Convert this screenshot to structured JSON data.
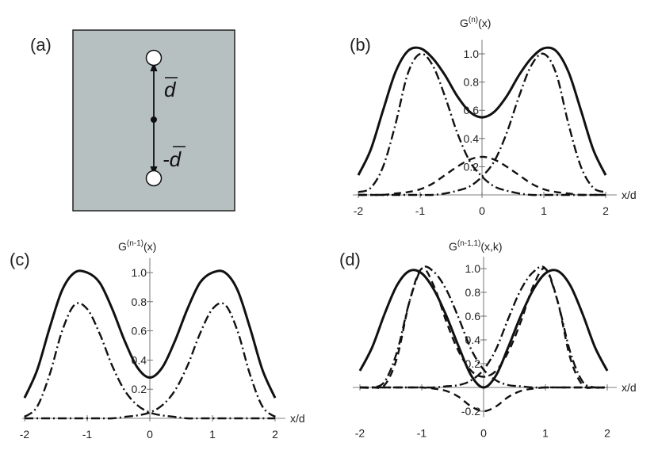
{
  "panel_a": {
    "label": "(a)",
    "background_color": "#b7c0c0",
    "label_top": "d",
    "label_bottom": "-d"
  },
  "chart_data": [
    {
      "panel": "(b)",
      "type": "line",
      "title": "G",
      "title_sup": "(n)",
      "title_suffix": "(x)",
      "xlabel": "x/d",
      "ylabel": "",
      "xlim": [
        -2.1,
        2.1
      ],
      "ylim": [
        0,
        1.1
      ],
      "xticks": [
        -2,
        -1,
        0,
        1,
        2
      ],
      "yticks": [
        0.2,
        0.4,
        0.6,
        0.8,
        1.0
      ],
      "xticklabels": [
        "-2",
        "-1",
        "0",
        "1",
        "2"
      ],
      "yticklabels": [
        "0.2",
        "0.4",
        "0.6",
        "0.8",
        "1.0"
      ],
      "grid": false,
      "series": [
        {
          "style": "solid",
          "x": [
            -2,
            -1.8,
            -1.6,
            -1.4,
            -1.2,
            -1,
            -0.8,
            -0.6,
            -0.4,
            -0.2,
            0,
            0.2,
            0.4,
            0.6,
            0.8,
            1,
            1.2,
            1.4,
            1.6,
            1.8,
            2
          ],
          "y": [
            0.14,
            0.32,
            0.6,
            0.87,
            1.02,
            1.04,
            0.97,
            0.85,
            0.7,
            0.59,
            0.55,
            0.59,
            0.7,
            0.85,
            0.97,
            1.04,
            1.02,
            0.87,
            0.6,
            0.32,
            0.14
          ]
        },
        {
          "style": "dashdot",
          "x": [
            -2,
            -1.8,
            -1.6,
            -1.4,
            -1.2,
            -1,
            -0.8,
            -0.6,
            -0.4,
            -0.2,
            0,
            0.2,
            0.4,
            0.6,
            0.8,
            1,
            1.2,
            1.4,
            1.6,
            1.8,
            2
          ],
          "y": [
            0.02,
            0.05,
            0.2,
            0.5,
            0.86,
            1.0,
            0.92,
            0.7,
            0.44,
            0.24,
            0.13,
            0.06,
            0.03,
            0.01,
            0.0,
            0.0,
            0.0,
            0.0,
            0.0,
            0.0,
            0.0
          ]
        },
        {
          "style": "dashdot",
          "x": [
            -2,
            -1.8,
            -1.6,
            -1.4,
            -1.2,
            -1,
            -0.8,
            -0.6,
            -0.4,
            -0.2,
            0,
            0.2,
            0.4,
            0.6,
            0.8,
            1,
            1.2,
            1.4,
            1.6,
            1.8,
            2
          ],
          "y": [
            0.0,
            0.0,
            0.0,
            0.0,
            0.0,
            0.0,
            0.0,
            0.01,
            0.03,
            0.06,
            0.13,
            0.24,
            0.44,
            0.7,
            0.92,
            1.0,
            0.86,
            0.5,
            0.2,
            0.05,
            0.02
          ]
        },
        {
          "style": "dashed",
          "x": [
            -2,
            -1.8,
            -1.6,
            -1.4,
            -1.2,
            -1,
            -0.8,
            -0.6,
            -0.4,
            -0.2,
            0,
            0.2,
            0.4,
            0.6,
            0.8,
            1,
            1.2,
            1.4,
            1.6,
            1.8,
            2
          ],
          "y": [
            0.0,
            0.0,
            0.0,
            0.01,
            0.02,
            0.04,
            0.08,
            0.14,
            0.2,
            0.25,
            0.27,
            0.25,
            0.2,
            0.14,
            0.08,
            0.04,
            0.02,
            0.01,
            0.0,
            0.0,
            0.0
          ]
        }
      ]
    },
    {
      "panel": "(c)",
      "type": "line",
      "title": "G",
      "title_sup": "(n-1)",
      "title_suffix": "(x)",
      "xlabel": "x/d",
      "ylabel": "",
      "xlim": [
        -2.1,
        2.1
      ],
      "ylim": [
        0,
        1.1
      ],
      "xticks": [
        -2,
        -1,
        0,
        1,
        2
      ],
      "yticks": [
        0.2,
        0.4,
        0.6,
        0.8,
        1.0
      ],
      "xticklabels": [
        "-2",
        "-1",
        "0",
        "1",
        "2"
      ],
      "yticklabels": [
        "0.2",
        "0.4",
        "0.6",
        "0.8",
        "1.0"
      ],
      "grid": false,
      "series": [
        {
          "style": "solid",
          "x": [
            -2,
            -1.8,
            -1.6,
            -1.4,
            -1.2,
            -1,
            -0.8,
            -0.6,
            -0.4,
            -0.2,
            0,
            0.2,
            0.4,
            0.6,
            0.8,
            1,
            1.2,
            1.4,
            1.6,
            1.8,
            2
          ],
          "y": [
            0.14,
            0.33,
            0.62,
            0.88,
            1.0,
            1.0,
            0.93,
            0.75,
            0.53,
            0.35,
            0.28,
            0.35,
            0.53,
            0.75,
            0.93,
            1.0,
            1.0,
            0.88,
            0.62,
            0.33,
            0.14
          ]
        },
        {
          "style": "dashdot",
          "x": [
            -2,
            -1.8,
            -1.6,
            -1.4,
            -1.2,
            -1,
            -0.8,
            -0.6,
            -0.4,
            -0.2,
            0,
            0.2,
            0.4,
            0.6,
            0.8,
            1,
            1.2,
            1.4,
            1.6,
            1.8,
            2
          ],
          "y": [
            0.0,
            0.0,
            0.0,
            0.0,
            0.0,
            0.0,
            0.0,
            0.0,
            0.01,
            0.02,
            0.04,
            0.09,
            0.19,
            0.36,
            0.58,
            0.75,
            0.78,
            0.6,
            0.3,
            0.08,
            0.01
          ]
        },
        {
          "style": "dashdot",
          "x": [
            -2,
            -1.8,
            -1.6,
            -1.4,
            -1.2,
            -1,
            -0.8,
            -0.6,
            -0.4,
            -0.2,
            0,
            0.2,
            0.4,
            0.6,
            0.8,
            1,
            1.2,
            1.4,
            1.6,
            1.8,
            2
          ],
          "y": [
            0.01,
            0.08,
            0.3,
            0.6,
            0.78,
            0.75,
            0.58,
            0.36,
            0.19,
            0.09,
            0.04,
            0.02,
            0.01,
            0.0,
            0.0,
            0.0,
            0.0,
            0.0,
            0.0,
            0.0,
            0.0
          ]
        }
      ]
    },
    {
      "panel": "(d)",
      "type": "line",
      "title": "G",
      "title_sup": "(n-1,1)",
      "title_suffix": "(x,k)",
      "xlabel": "x/d",
      "ylabel": "",
      "xlim": [
        -2.1,
        2.1
      ],
      "ylim": [
        -0.25,
        1.1
      ],
      "xticks": [
        -2,
        -1,
        0,
        1,
        2
      ],
      "yticks": [
        -0.2,
        0.2,
        0.4,
        0.6,
        0.8,
        1.0
      ],
      "xticklabels": [
        "-2",
        "-1",
        "0",
        "1",
        "2"
      ],
      "yticklabels": [
        "-0.2",
        "0.2",
        "0.4",
        "0.6",
        "0.8",
        "1.0"
      ],
      "grid": false,
      "series": [
        {
          "style": "solid",
          "x": [
            -2,
            -1.8,
            -1.6,
            -1.4,
            -1.2,
            -1,
            -0.8,
            -0.6,
            -0.4,
            -0.2,
            0,
            0.2,
            0.4,
            0.6,
            0.8,
            1,
            1.2,
            1.4,
            1.6,
            1.8,
            2
          ],
          "y": [
            0.14,
            0.34,
            0.62,
            0.86,
            0.98,
            0.96,
            0.82,
            0.6,
            0.34,
            0.1,
            0.0,
            0.1,
            0.34,
            0.6,
            0.82,
            0.96,
            0.98,
            0.86,
            0.62,
            0.34,
            0.14
          ]
        },
        {
          "style": "dashed",
          "x": [
            -2,
            -1.8,
            -1.6,
            -1.4,
            -1.2,
            -1,
            -0.8,
            -0.6,
            -0.4,
            -0.2,
            0,
            0.2,
            0.4,
            0.6,
            0.8,
            1,
            1.2,
            1.4,
            1.6,
            1.8,
            2
          ],
          "y": [
            0.0,
            0.0,
            0.02,
            0.25,
            0.72,
            1.0,
            0.85,
            0.55,
            0.3,
            0.14,
            0.09,
            0.14,
            0.3,
            0.55,
            0.85,
            1.0,
            0.72,
            0.25,
            0.02,
            0.0,
            0.0
          ]
        },
        {
          "style": "dashdot",
          "x": [
            -2,
            -1.8,
            -1.6,
            -1.4,
            -1.2,
            -1,
            -0.8,
            -0.6,
            -0.4,
            -0.2,
            0,
            0.2,
            0.4,
            0.6,
            0.8,
            1,
            1.2,
            1.4,
            1.6,
            1.8,
            2
          ],
          "y": [
            0.0,
            0.0,
            0.0,
            0.0,
            0.0,
            0.0,
            0.0,
            0.01,
            0.02,
            0.06,
            0.15,
            0.32,
            0.58,
            0.82,
            0.97,
            1.0,
            0.72,
            0.3,
            0.05,
            0.0,
            0.0
          ]
        },
        {
          "style": "dashdot",
          "x": [
            -2,
            -1.8,
            -1.6,
            -1.4,
            -1.2,
            -1,
            -0.8,
            -0.6,
            -0.4,
            -0.2,
            0,
            0.2,
            0.4,
            0.6,
            0.8,
            1,
            1.2,
            1.4,
            1.6,
            1.8,
            2
          ],
          "y": [
            0.0,
            0.0,
            0.05,
            0.3,
            0.72,
            1.0,
            0.97,
            0.82,
            0.58,
            0.32,
            0.15,
            0.06,
            0.02,
            0.01,
            0.0,
            0.0,
            0.0,
            0.0,
            0.0,
            0.0,
            0.0
          ]
        },
        {
          "style": "dashed",
          "x": [
            -2,
            -1.8,
            -1.6,
            -1.4,
            -1.2,
            -1,
            -0.8,
            -0.6,
            -0.4,
            -0.2,
            0,
            0.2,
            0.4,
            0.6,
            0.8,
            1,
            1.2,
            1.4,
            1.6,
            1.8,
            2
          ],
          "y": [
            0.0,
            0.0,
            0.0,
            0.0,
            0.0,
            0.0,
            -0.01,
            -0.03,
            -0.08,
            -0.16,
            -0.2,
            -0.16,
            -0.08,
            -0.03,
            -0.01,
            0.0,
            0.0,
            0.0,
            0.0,
            0.0,
            0.0
          ]
        }
      ]
    }
  ]
}
